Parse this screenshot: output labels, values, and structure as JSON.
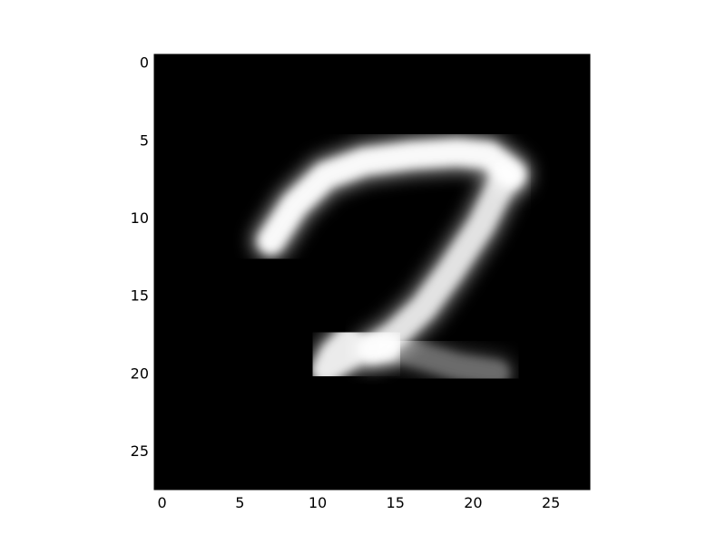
{
  "chart_data": {
    "type": "heatmap",
    "title": "",
    "xlabel": "",
    "ylabel": "",
    "colormap": "gray",
    "background_color": "#000000",
    "stroke_color": "#ffffff",
    "grid": false,
    "xlim": [
      -0.5,
      27.5
    ],
    "ylim": [
      27.5,
      -0.5
    ],
    "x_ticks": [
      0,
      5,
      10,
      15,
      20,
      25
    ],
    "y_ticks": [
      0,
      5,
      10,
      15,
      20,
      25
    ],
    "x_tick_labels": [
      "0",
      "5",
      "10",
      "15",
      "20",
      "25"
    ],
    "y_tick_labels": [
      "0",
      "5",
      "10",
      "15",
      "20",
      "25"
    ],
    "strokes": [
      {
        "name": "top-bar",
        "intensity": 0.95,
        "points": [
          [
            7,
            11.5
          ],
          [
            8.5,
            9.2
          ],
          [
            10.5,
            7.3
          ],
          [
            13,
            6.4
          ],
          [
            16,
            6.0
          ],
          [
            19,
            5.8
          ],
          [
            21,
            6.0
          ],
          [
            22.5,
            7.2
          ]
        ]
      },
      {
        "name": "diagonal",
        "intensity": 0.8,
        "points": [
          [
            22,
            7.5
          ],
          [
            20.5,
            10.5
          ],
          [
            18.5,
            13.5
          ],
          [
            16.8,
            15.8
          ],
          [
            15,
            17.5
          ],
          [
            13.5,
            18.5
          ]
        ]
      },
      {
        "name": "bottom-loop",
        "intensity": 0.85,
        "points": [
          [
            12,
            17.8
          ],
          [
            11,
            18.8
          ],
          [
            10.5,
            19.8
          ],
          [
            11.5,
            19.2
          ],
          [
            13,
            18.3
          ],
          [
            14.5,
            18.3
          ]
        ]
      },
      {
        "name": "bottom-tail",
        "intensity": 0.3,
        "points": [
          [
            14.5,
            18.3
          ],
          [
            17,
            19.0
          ],
          [
            19,
            19.6
          ],
          [
            21.5,
            20.0
          ]
        ]
      }
    ]
  }
}
